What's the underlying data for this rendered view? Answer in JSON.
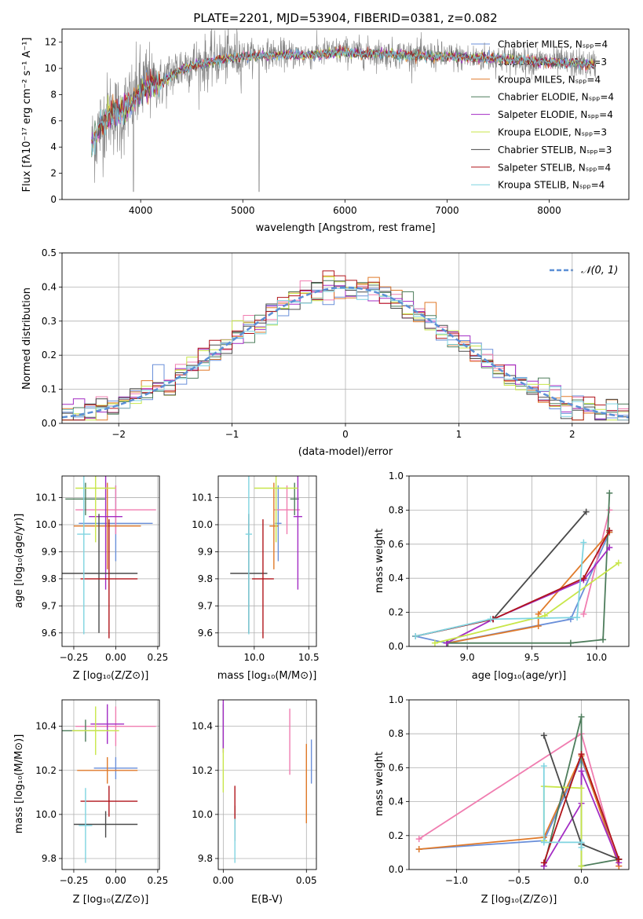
{
  "panel1": {
    "title": "PLATE=2201, MJD=53904, FIBERID=0381, z=0.082",
    "xlabel": "wavelength [Angstrom, rest frame]",
    "ylabel": "Flux [fλ10⁻¹⁷ erg cm⁻² s⁻¹ A⁻¹]"
  },
  "panel2": {
    "xlabel": "(data-model)/error",
    "ylabel": "Normed distribution",
    "gauss_label": "𝒩(0, 1)"
  },
  "panel3": {
    "xlabel": "Z [log₁₀(Z/Z⊙)]",
    "ylabel": "age  [log₁₀(age/yr)]"
  },
  "panel4": {
    "xlabel": "mass [log₁₀(M/M⊙)]"
  },
  "panel5": {
    "xlabel": "age  [log₁₀(age/yr)]",
    "ylabel": "mass weight"
  },
  "panel6": {
    "xlabel": "Z [log₁₀(Z/Z⊙)]",
    "ylabel": "mass [log₁₀(M/M⊙)]"
  },
  "panel7": {
    "xlabel": "E(B-V)"
  },
  "panel8": {
    "xlabel": "Z [log₁₀(Z/Z⊙)]",
    "ylabel": "mass weight"
  },
  "models": [
    {
      "name": "Chabrier MILES, Nₛₚₚ=4",
      "color": "#6a8fd9"
    },
    {
      "name": "Salpeter MILES, Nₛₚₚ=3",
      "color": "#f07db0"
    },
    {
      "name": "Kroupa MILES, Nₛₚₚ=4",
      "color": "#e07a2a"
    },
    {
      "name": "Chabrier ELODIE, Nₛₚₚ=4",
      "color": "#4e7d5c"
    },
    {
      "name": "Salpeter ELODIE, Nₛₚₚ=4",
      "color": "#a32cc4"
    },
    {
      "name": "Kroupa ELODIE, Nₛₚₚ=3",
      "color": "#c8e64a"
    },
    {
      "name": "Chabrier STELIB, Nₛₚₚ=3",
      "color": "#4a4a4a"
    },
    {
      "name": "Salpeter STELIB, Nₛₚₚ=4",
      "color": "#b0141a"
    },
    {
      "name": "Kroupa STELIB, Nₛₚₚ=4",
      "color": "#7fd4e0"
    }
  ],
  "chart_data": [
    {
      "type": "line",
      "title": "PLATE=2201, MJD=53904, FIBERID=0381, z=0.082",
      "xlim": [
        3230,
        8780
      ],
      "ylim": [
        0,
        13
      ],
      "xticks": [
        4000,
        5000,
        6000,
        7000,
        8000
      ],
      "yticks": [
        0,
        2,
        4,
        6,
        8,
        10,
        12
      ],
      "data_series": {
        "name": "data",
        "color": "#808080",
        "x": [
          3520,
          3600,
          3700,
          3800,
          3900,
          4000,
          4100,
          4200,
          4300,
          4400,
          4500,
          4600,
          4700,
          4800,
          4900,
          5000,
          5200,
          5400,
          5600,
          5800,
          6000,
          6200,
          6400,
          6600,
          6800,
          7000,
          7200,
          7400,
          7600,
          7800,
          8000,
          8200,
          8400
        ],
        "y": [
          4.0,
          5.5,
          6.8,
          6.2,
          7.5,
          8.5,
          9.0,
          8.8,
          9.6,
          10.1,
          10.4,
          10.3,
          10.6,
          10.8,
          10.9,
          11.0,
          11.1,
          11.1,
          11.0,
          11.2,
          11.3,
          11.2,
          11.1,
          11.1,
          11.0,
          10.9,
          10.8,
          10.8,
          10.7,
          10.6,
          10.5,
          10.4,
          10.3
        ]
      },
      "model_x": [
        3520,
        3600,
        3700,
        3800,
        3900,
        4000,
        4100,
        4200,
        4300,
        4400,
        4500,
        4600,
        4700,
        4800,
        4900,
        5000,
        5200,
        5400,
        5600,
        5800,
        6000,
        6200,
        6400,
        6600,
        6800,
        7000,
        7200,
        7400,
        7600,
        7800,
        8000,
        8200,
        8400
      ],
      "model_y": [
        4.3,
        5.6,
        6.5,
        6.6,
        7.3,
        8.3,
        8.8,
        8.9,
        9.4,
        9.9,
        10.2,
        10.3,
        10.5,
        10.7,
        10.8,
        10.9,
        11.0,
        11.0,
        11.0,
        11.1,
        11.2,
        11.1,
        11.1,
        11.0,
        10.9,
        10.9,
        10.8,
        10.8,
        10.7,
        10.6,
        10.5,
        10.4,
        10.3
      ]
    },
    {
      "type": "bar",
      "xlim": [
        -2.5,
        2.5
      ],
      "ylim": [
        0,
        0.5
      ],
      "xticks": [
        -2,
        -1,
        0,
        1,
        2
      ],
      "yticks": [
        0.0,
        0.1,
        0.2,
        0.3,
        0.4,
        0.5
      ],
      "bin_width": 0.1,
      "note": "step histograms of normalized residuals for 9 models with standard normal overlay"
    },
    {
      "type": "scatter",
      "xlim": [
        -0.32,
        0.26
      ],
      "ylim": [
        9.55,
        10.18
      ],
      "xticks": [
        -0.25,
        0.0,
        0.25
      ],
      "yticks": [
        9.6,
        9.7,
        9.8,
        9.9,
        10.0,
        10.1
      ],
      "points": [
        {
          "m": 0,
          "x": 0.0,
          "y": 10.005,
          "xerr": 0.22,
          "yerr": 0.14
        },
        {
          "m": 1,
          "x": 0.0,
          "y": 10.055,
          "xerr": 0.24,
          "yerr": 0.09
        },
        {
          "m": 2,
          "x": -0.05,
          "y": 9.995,
          "xerr": 0.2,
          "yerr": 0.16
        },
        {
          "m": 3,
          "x": -0.18,
          "y": 10.095,
          "xerr": 0.12,
          "yerr": 0.06
        },
        {
          "m": 4,
          "x": -0.06,
          "y": 10.03,
          "xerr": 0.1,
          "yerr": 0.27
        },
        {
          "m": 5,
          "x": -0.12,
          "y": 10.135,
          "xerr": 0.12,
          "yerr": 0.2
        },
        {
          "m": 6,
          "x": -0.1,
          "y": 9.82,
          "xerr": 0.23,
          "yerr": 0.22
        },
        {
          "m": 7,
          "x": -0.04,
          "y": 9.8,
          "xerr": 0.17,
          "yerr": 0.22
        },
        {
          "m": 8,
          "x": -0.19,
          "y": 9.965,
          "xerr": 0.04,
          "yerr": 0.37
        }
      ]
    },
    {
      "type": "scatter",
      "xlim": [
        9.67,
        10.57
      ],
      "ylim": [
        9.55,
        10.18
      ],
      "xticks": [
        10.0,
        10.5
      ],
      "yticks": [
        9.6,
        9.7,
        9.8,
        9.9,
        10.0,
        10.1
      ],
      "points": [
        {
          "m": 0,
          "x": 10.22,
          "y": 10.005,
          "xerr": 0.03,
          "yerr": 0.14
        },
        {
          "m": 1,
          "x": 10.3,
          "y": 10.055,
          "xerr": 0.12,
          "yerr": 0.09
        },
        {
          "m": 2,
          "x": 10.18,
          "y": 9.995,
          "xerr": 0.04,
          "yerr": 0.16
        },
        {
          "m": 3,
          "x": 10.37,
          "y": 10.095,
          "xerr": 0.04,
          "yerr": 0.06
        },
        {
          "m": 4,
          "x": 10.4,
          "y": 10.03,
          "xerr": 0.04,
          "yerr": 0.27
        },
        {
          "m": 5,
          "x": 10.2,
          "y": 10.135,
          "xerr": 0.2,
          "yerr": 0.2
        },
        {
          "m": 6,
          "x": 9.95,
          "y": 9.82,
          "xerr": 0.17,
          "yerr": 0.22
        },
        {
          "m": 7,
          "x": 10.08,
          "y": 9.8,
          "xerr": 0.1,
          "yerr": 0.22
        },
        {
          "m": 8,
          "x": 9.95,
          "y": 9.965,
          "xerr": 0.03,
          "yerr": 0.37
        }
      ]
    },
    {
      "type": "line",
      "xlim": [
        8.55,
        10.25
      ],
      "ylim": [
        0.0,
        1.0
      ],
      "xticks": [
        9.0,
        9.5,
        10.0
      ],
      "yticks": [
        0.0,
        0.2,
        0.4,
        0.6,
        0.8,
        1.0
      ],
      "series": [
        {
          "m": 0,
          "x": [
            8.6,
            8.84,
            9.8,
            10.1
          ],
          "y": [
            0.06,
            0.02,
            0.16,
            0.67
          ]
        },
        {
          "m": 1,
          "x": [
            9.9,
            10.1
          ],
          "y": [
            0.19,
            0.8
          ]
        },
        {
          "m": 2,
          "x": [
            8.85,
            9.55,
            9.55,
            10.1
          ],
          "y": [
            0.02,
            0.12,
            0.19,
            0.67
          ]
        },
        {
          "m": 3,
          "x": [
            8.85,
            9.8,
            10.05,
            10.1
          ],
          "y": [
            0.02,
            0.02,
            0.04,
            0.9
          ]
        },
        {
          "m": 4,
          "x": [
            8.84,
            9.2,
            9.9,
            10.1
          ],
          "y": [
            0.02,
            0.16,
            0.39,
            0.58
          ]
        },
        {
          "m": 5,
          "x": [
            8.75,
            9.6,
            10.17
          ],
          "y": [
            0.02,
            0.18,
            0.49
          ]
        },
        {
          "m": 6,
          "x": [
            8.6,
            9.2,
            9.92
          ],
          "y": [
            0.06,
            0.16,
            0.79
          ]
        },
        {
          "m": 7,
          "x": [
            8.6,
            9.2,
            9.9,
            10.1
          ],
          "y": [
            0.06,
            0.16,
            0.4,
            0.68
          ]
        },
        {
          "m": 8,
          "x": [
            8.6,
            9.18,
            9.85,
            9.9
          ],
          "y": [
            0.06,
            0.16,
            0.17,
            0.61
          ]
        }
      ]
    },
    {
      "type": "scatter",
      "xlim": [
        -0.32,
        0.26
      ],
      "ylim": [
        9.75,
        10.52
      ],
      "xticks": [
        -0.25,
        0.0,
        0.25
      ],
      "yticks": [
        9.8,
        10.0,
        10.2,
        10.4
      ],
      "points": [
        {
          "m": 0,
          "x": 0.0,
          "y": 10.21,
          "xerr": 0.13,
          "yerr": 0.05
        },
        {
          "m": 1,
          "x": 0.0,
          "y": 10.4,
          "xerr": 0.24,
          "yerr": 0.09
        },
        {
          "m": 2,
          "x": -0.05,
          "y": 10.2,
          "xerr": 0.18,
          "yerr": 0.06
        },
        {
          "m": 3,
          "x": -0.18,
          "y": 10.38,
          "xerr": 0.14,
          "yerr": 0.05
        },
        {
          "m": 4,
          "x": -0.05,
          "y": 10.41,
          "xerr": 0.1,
          "yerr": 0.09
        },
        {
          "m": 5,
          "x": -0.12,
          "y": 10.38,
          "xerr": 0.14,
          "yerr": 0.11
        },
        {
          "m": 6,
          "x": -0.06,
          "y": 9.955,
          "xerr": 0.19,
          "yerr": 0.06
        },
        {
          "m": 7,
          "x": -0.04,
          "y": 10.06,
          "xerr": 0.17,
          "yerr": 0.07
        },
        {
          "m": 8,
          "x": -0.18,
          "y": 9.95,
          "xerr": 0.04,
          "yerr": 0.17
        }
      ]
    },
    {
      "type": "scatter",
      "xlim": [
        -0.003,
        0.056
      ],
      "ylim": [
        9.75,
        10.52
      ],
      "xticks": [
        0.0,
        0.05
      ],
      "yticks": [
        9.8,
        10.0,
        10.2,
        10.4
      ],
      "points": [
        {
          "m": 0,
          "x": 0.053,
          "y": 10.24,
          "yerr": 0.1
        },
        {
          "m": 1,
          "x": 0.04,
          "y": 10.33,
          "yerr": 0.15
        },
        {
          "m": 2,
          "x": 0.05,
          "y": 10.14,
          "yerr": 0.18
        },
        {
          "m": 3,
          "x": 0.0,
          "y": 10.4,
          "yerr": 0.1
        },
        {
          "m": 4,
          "x": 0.0,
          "y": 10.42,
          "yerr": 0.14
        },
        {
          "m": 5,
          "x": 0.0,
          "y": 10.2,
          "yerr": 0.1
        },
        {
          "m": 6,
          "x": 0.007,
          "y": 9.96,
          "yerr": 0.08
        },
        {
          "m": 7,
          "x": 0.007,
          "y": 10.05,
          "yerr": 0.08
        },
        {
          "m": 8,
          "x": 0.007,
          "y": 9.88,
          "yerr": 0.1
        }
      ]
    },
    {
      "type": "line",
      "xlim": [
        -1.38,
        0.38
      ],
      "ylim": [
        0.0,
        1.0
      ],
      "xticks": [
        -1.0,
        -0.5,
        0.0
      ],
      "yticks": [
        0.0,
        0.2,
        0.4,
        0.6,
        0.8,
        1.0
      ],
      "series": [
        {
          "m": 0,
          "x": [
            -1.3,
            -0.3,
            0.0,
            0.3
          ],
          "y": [
            0.12,
            0.17,
            0.65,
            0.06
          ]
        },
        {
          "m": 1,
          "x": [
            -1.3,
            0.0,
            0.3
          ],
          "y": [
            0.18,
            0.8,
            0.02
          ]
        },
        {
          "m": 2,
          "x": [
            -1.3,
            -0.3,
            0.0,
            0.3
          ],
          "y": [
            0.12,
            0.19,
            0.67,
            0.02
          ]
        },
        {
          "m": 3,
          "x": [
            -0.3,
            0.0,
            0.0,
            0.3
          ],
          "y": [
            0.02,
            0.9,
            0.02,
            0.06
          ]
        },
        {
          "m": 4,
          "x": [
            -0.3,
            0.0,
            0.0,
            0.3
          ],
          "y": [
            0.02,
            0.39,
            0.58,
            0.04
          ]
        },
        {
          "m": 5,
          "x": [
            -0.3,
            -0.3,
            0.0,
            0.0
          ],
          "y": [
            0.17,
            0.49,
            0.48,
            0.02
          ]
        },
        {
          "m": 6,
          "x": [
            -0.3,
            0.0,
            0.3
          ],
          "y": [
            0.79,
            0.15,
            0.06
          ]
        },
        {
          "m": 7,
          "x": [
            -0.3,
            0.0,
            0.3
          ],
          "y": [
            0.04,
            0.68,
            0.06
          ]
        },
        {
          "m": 8,
          "x": [
            -0.3,
            -0.3,
            0.0,
            0.0
          ],
          "y": [
            0.61,
            0.16,
            0.16,
            0.13
          ]
        }
      ]
    }
  ]
}
